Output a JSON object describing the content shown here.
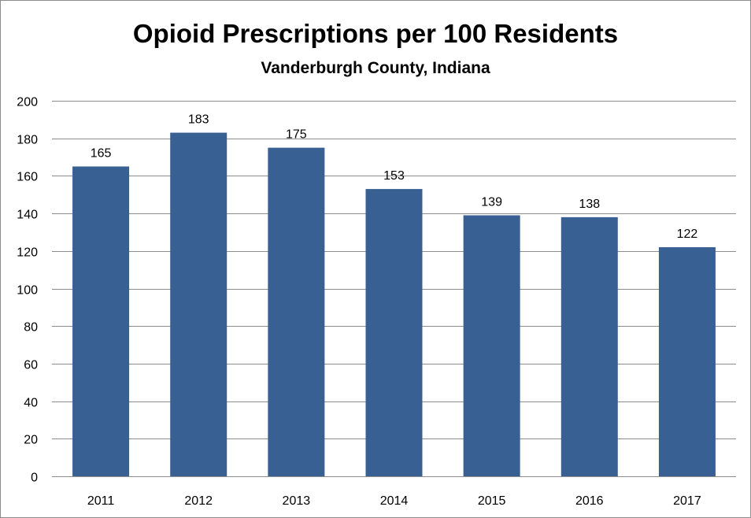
{
  "chart_data": {
    "type": "bar",
    "title": "Opioid Prescriptions per 100 Residents",
    "subtitle": "Vanderburgh County, Indiana",
    "xlabel": "",
    "ylabel": "",
    "categories": [
      "2011",
      "2012",
      "2013",
      "2014",
      "2015",
      "2016",
      "2017"
    ],
    "values": [
      165,
      183,
      175,
      153,
      139,
      138,
      122
    ],
    "data_labels": [
      "165",
      "183",
      "175",
      "153",
      "139",
      "138",
      "122"
    ],
    "ylim": [
      0,
      200
    ],
    "yticks": [
      0,
      20,
      40,
      60,
      80,
      100,
      120,
      140,
      160,
      180,
      200
    ],
    "ytick_labels": [
      "0",
      "20",
      "40",
      "60",
      "80",
      "100",
      "120",
      "140",
      "160",
      "180",
      "200"
    ],
    "grid": true,
    "legend": "none",
    "bar_color": "#386092",
    "grid_color": "#8c8c8c"
  }
}
